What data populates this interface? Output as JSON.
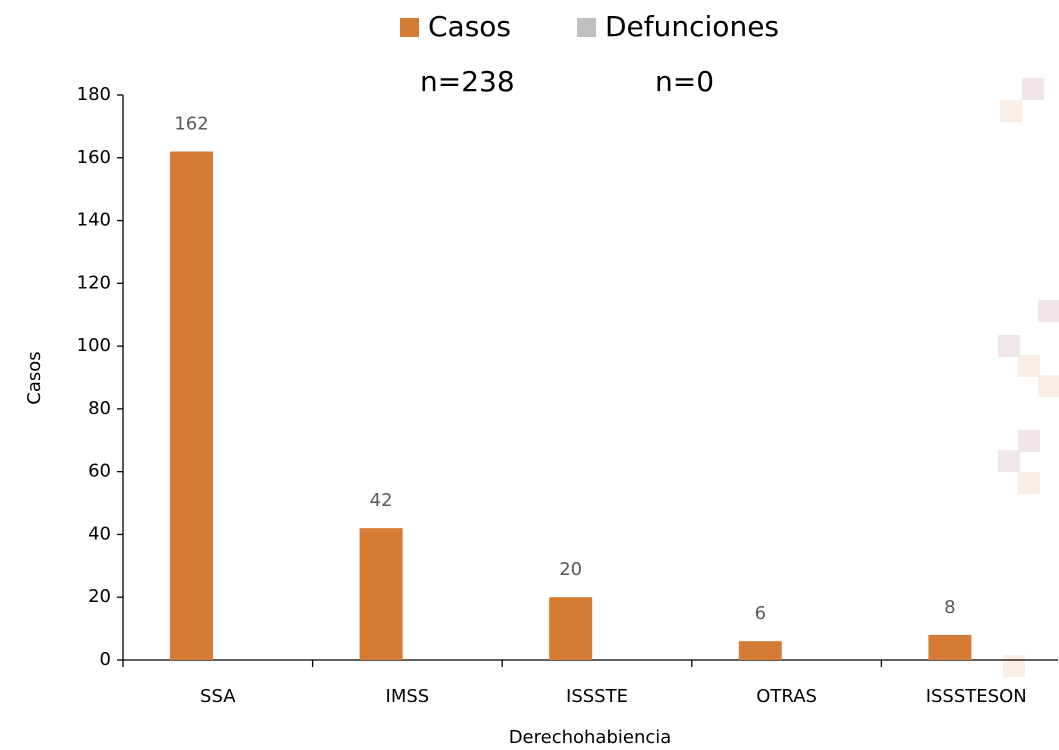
{
  "chart_data": {
    "type": "bar",
    "categories": [
      "SSA",
      "IMSS",
      "ISSSTE",
      "OTRAS",
      "ISSSTESON"
    ],
    "series": [
      {
        "name": "Casos",
        "color": "#d57b36",
        "values": [
          162,
          42,
          20,
          6,
          8
        ],
        "data_labels": true
      },
      {
        "name": "Defunciones",
        "color": "#bfbfbf",
        "values": [
          0,
          0,
          0,
          0,
          0
        ],
        "data_labels": false
      }
    ],
    "annotations": [
      "n=238",
      "n=0"
    ],
    "x_label": "Derechohabiencia",
    "y_label": "Casos",
    "ylim": [
      0,
      180
    ],
    "yticks": [
      0,
      20,
      40,
      60,
      80,
      100,
      120,
      140,
      160,
      180
    ],
    "grid": false
  }
}
